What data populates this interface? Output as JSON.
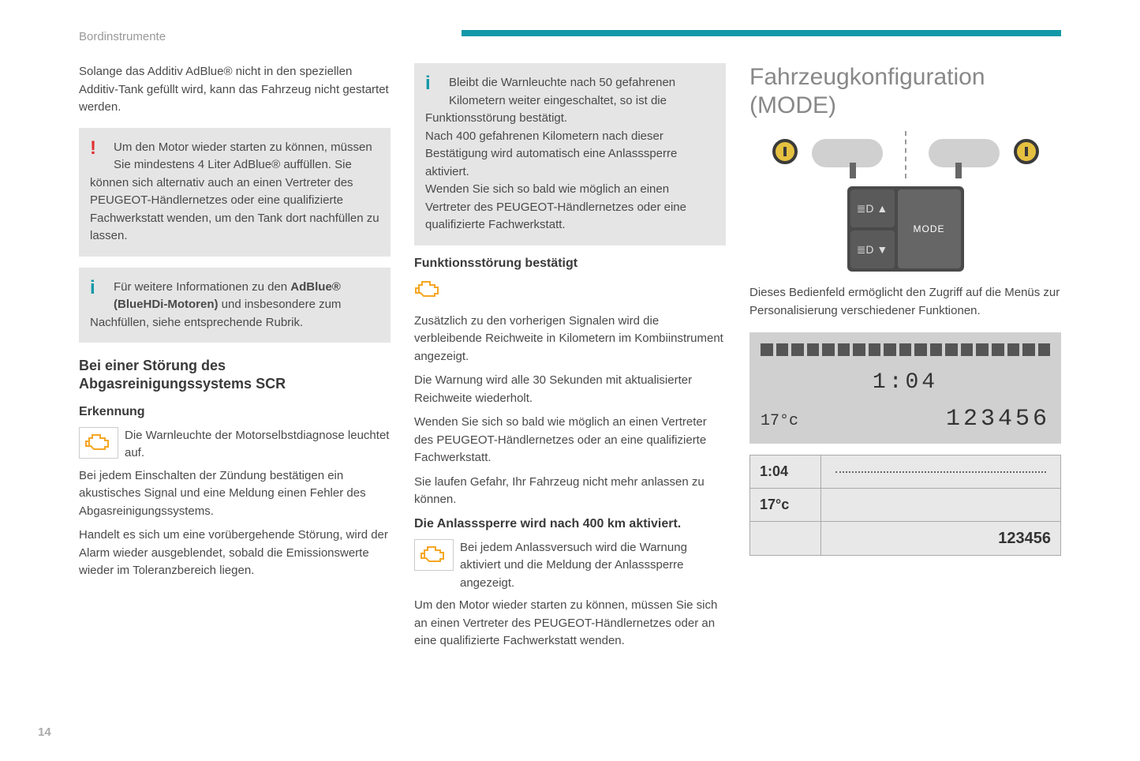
{
  "header": {
    "section": "Bordinstrumente"
  },
  "page_number": "14",
  "colors": {
    "accent": "#1298a8",
    "warn": "#e03030",
    "text": "#4a4a4a",
    "box_bg": "#e5e5e5",
    "engine_icon": "#f5a623"
  },
  "col1": {
    "intro": "Solange das Additiv AdBlue® nicht in den speziellen Additiv-Tank gefüllt wird, kann das Fahrzeug nicht gestartet werden.",
    "warn_box": "Um den Motor wieder starten zu können, müssen Sie mindestens 4 Liter AdBlue® auffüllen. Sie können sich alternativ auch an einen Vertreter des PEUGEOT-Händlernetzes oder eine qualifizierte Fachwerkstatt wenden, um den Tank dort nachfüllen zu lassen.",
    "info_box_prefix": "Für weitere Informationen zu den ",
    "info_box_bold": "AdBlue® (BlueHDi-Motoren)",
    "info_box_suffix": " und insbesondere zum Nachfüllen, siehe entsprechende Rubrik.",
    "heading": "Bei einer Störung des Abgasreinigungssystems SCR",
    "sub1": "Erkennung",
    "engine_text": "Die Warnleuchte der Motorselbstdiagnose leuchtet auf.",
    "para1": "Bei jedem Einschalten der Zündung bestätigen ein akustisches Signal und eine Meldung einen Fehler des Abgasreinigungssystems.",
    "para2": "Handelt es sich um eine vorübergehende Störung, wird der Alarm wieder ausgeblendet, sobald die Emissionswerte wieder im Toleranzbereich liegen."
  },
  "col2": {
    "info_box": "Bleibt die Warnleuchte nach 50 gefahrenen Kilometern weiter eingeschaltet, so ist die Funktionsstörung bestätigt.\nNach 400 gefahrenen Kilometern nach dieser Bestätigung wird automatisch eine Anlasssperre aktiviert.\nWenden Sie sich so bald wie möglich an einen Vertreter des PEUGEOT-Händlernetzes oder eine qualifizierte Fachwerkstatt.",
    "sub1": "Funktionsstörung bestätigt",
    "para1": "Zusätzlich zu den vorherigen Signalen wird die verbleibende Reichweite in Kilometern im Kombiinstrument angezeigt.",
    "para2": "Die Warnung wird alle 30 Sekunden mit aktualisierter Reichweite wiederholt.",
    "para3": "Wenden Sie sich so bald wie möglich an einen Vertreter des PEUGEOT-Händlernetzes oder an eine qualifizierte Fachwerkstatt.",
    "para4": "Sie laufen Gefahr, Ihr Fahrzeug nicht mehr anlassen zu können.",
    "sub2": "Die Anlasssperre wird nach 400 km aktiviert.",
    "engine_text2": "Bei jedem Anlassversuch wird die Warnung aktiviert und die Meldung der Anlasssperre angezeigt.",
    "para5": "Um den Motor wieder starten zu können, müssen Sie sich an einen Vertreter des PEUGEOT-Händlernetzes oder an eine qualifizierte Fachwerkstatt wenden."
  },
  "col3": {
    "title": "Fahrzeugkonfiguration (MODE)",
    "mode_label": "MODE",
    "desc": "Dieses Bedienfeld ermöglicht den Zugriff auf die Menüs zur Personalisierung verschiedener Funktionen.",
    "lcd": {
      "time": "1:04",
      "temp": "17°c",
      "odometer": "123456",
      "dot_count": 19
    },
    "schema": {
      "time": "1:04",
      "temp": "17°c",
      "odometer": "123456"
    }
  }
}
